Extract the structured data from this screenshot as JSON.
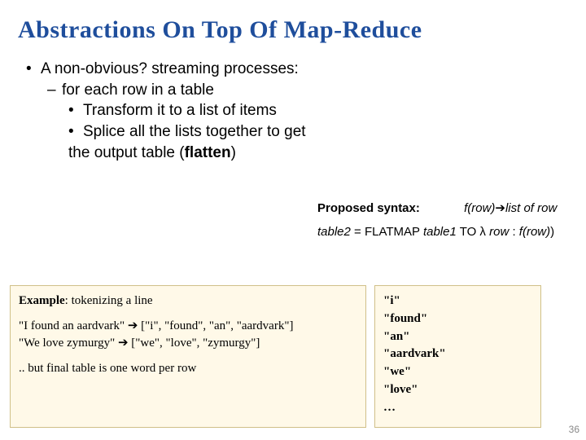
{
  "title": "Abstractions On Top Of Map-Reduce",
  "bullets": {
    "l1": "A non-obvious? streaming processes:",
    "l2": "for each row in a table",
    "l3a": "Transform it to a list of items",
    "l3b_part1": "Splice all the lists together to get the output table (",
    "l3b_bold": "flatten",
    "l3b_part2": ")"
  },
  "syntax": {
    "label": "Proposed syntax:",
    "rhs_f": "f(row)",
    "rhs_arrow": "➔",
    "rhs_list": "list of row",
    "line2_t2": "table2",
    "line2_eq": " = FLATMAP ",
    "line2_t1": "table1",
    "line2_to": " TO λ ",
    "line2_row": "row",
    "line2_colon": " : ",
    "line2_f": "f(row)",
    "line2_close": ") "
  },
  "example": {
    "label": "Example",
    "label_rest": ": tokenizing a line",
    "line1": "\"I found an aardvark\" ➔ [\"i\", \"found\", \"an\", \"aardvark\"]",
    "line2": "\"We love zymurgy\" ➔ [\"we\", \"love\", \"zymurgy\"]",
    "footer": ".. but final table is one word per row"
  },
  "words": [
    "\"i\"",
    "\"found\"",
    "\"an\"",
    "\"aardvark\"",
    "\"we\"",
    "\"love\"",
    "…"
  ],
  "page_number": "36",
  "colors": {
    "title": "#1f4e9c",
    "box_bg": "#fff9e8",
    "box_border": "#d0c088"
  }
}
